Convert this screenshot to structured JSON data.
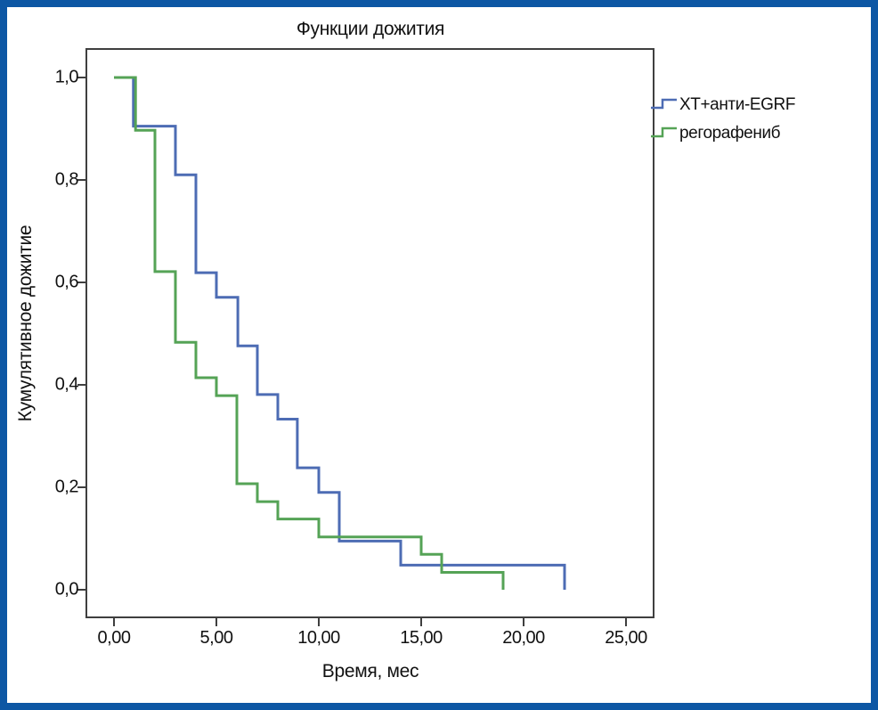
{
  "chart_data": {
    "type": "line",
    "subtype": "kaplan-meier-step-survival",
    "title": "Функции дожития",
    "xlabel": "Время, мес",
    "ylabel": "Кумулятивное дожитие",
    "grid": false,
    "legend_position": "top-right-outside-plot",
    "frame_color": "#0d57a4",
    "axis_color": "#3f3f3f",
    "text_color": "#111111",
    "xlim": [
      -1.35,
      26.35
    ],
    "ylim": [
      -0.054,
      1.056
    ],
    "x_ticks": {
      "values": [
        0,
        5,
        10,
        15,
        20,
        25
      ],
      "labels": [
        "0,00",
        "5,00",
        "10,00",
        "15,00",
        "20,00",
        "25,00"
      ]
    },
    "y_ticks": {
      "values": [
        0,
        0.2,
        0.4,
        0.6,
        0.8,
        1.0
      ],
      "labels": [
        "0,0",
        "0,2",
        "0,4",
        "0,6",
        "0,8",
        "1,0"
      ]
    },
    "series": [
      {
        "name": "ХТ+анти-EGRF",
        "color": "#4d6cb4",
        "points": [
          [
            0,
            1.0
          ],
          [
            0.95,
            0.905
          ],
          [
            3,
            0.81
          ],
          [
            4,
            0.619
          ],
          [
            5,
            0.571
          ],
          [
            6.05,
            0.476
          ],
          [
            7,
            0.381
          ],
          [
            8,
            0.333
          ],
          [
            8.95,
            0.238
          ],
          [
            10,
            0.19
          ],
          [
            11,
            0.095
          ],
          [
            14,
            0.048
          ],
          [
            22,
            0.0
          ]
        ]
      },
      {
        "name": "регорафениб",
        "color": "#55a356",
        "points": [
          [
            0,
            1.0
          ],
          [
            1.05,
            0.897
          ],
          [
            2,
            0.621
          ],
          [
            3,
            0.483
          ],
          [
            4,
            0.414
          ],
          [
            5,
            0.379
          ],
          [
            6,
            0.207
          ],
          [
            7,
            0.172
          ],
          [
            8,
            0.138
          ],
          [
            10,
            0.103
          ],
          [
            15,
            0.069
          ],
          [
            16,
            0.034
          ],
          [
            19,
            0.0
          ]
        ]
      }
    ]
  }
}
